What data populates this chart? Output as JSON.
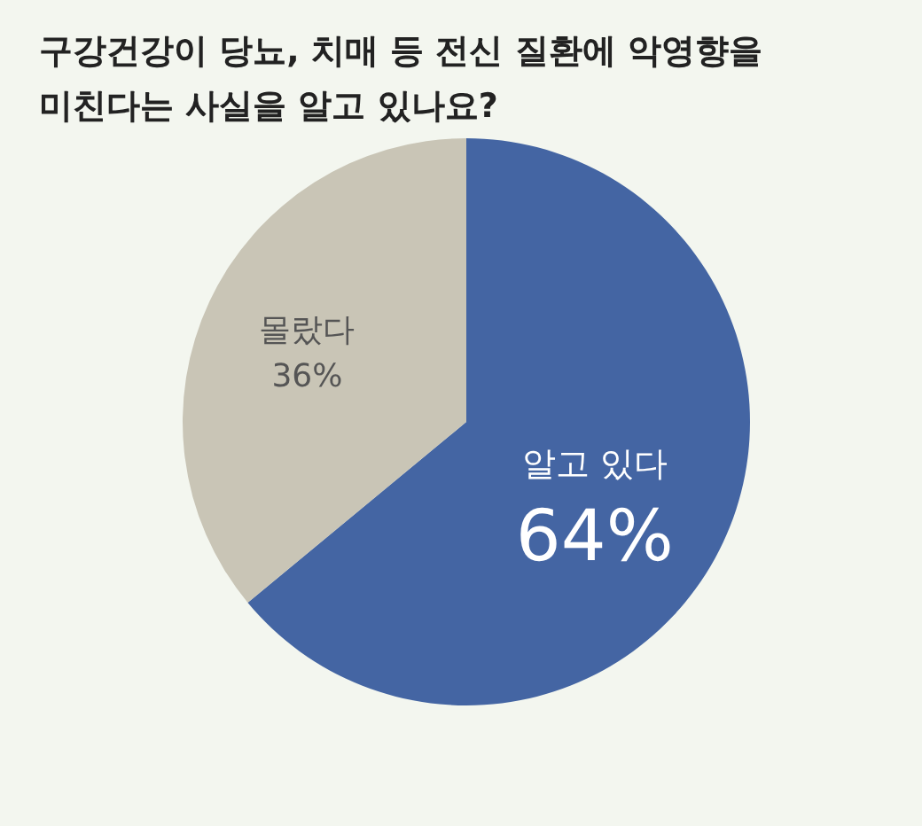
{
  "chart_data": {
    "type": "pie",
    "title": "구강건강이 당뇨, 치매 등 전신 질환에 악영향을 미친다는 사실을 알고 있나요?",
    "categories": [
      "알고 있다",
      "몰랐다"
    ],
    "values": [
      64,
      36
    ],
    "value_labels": [
      "64%",
      "36%"
    ],
    "colors": [
      "#4465a3",
      "#c9c5b6"
    ]
  }
}
